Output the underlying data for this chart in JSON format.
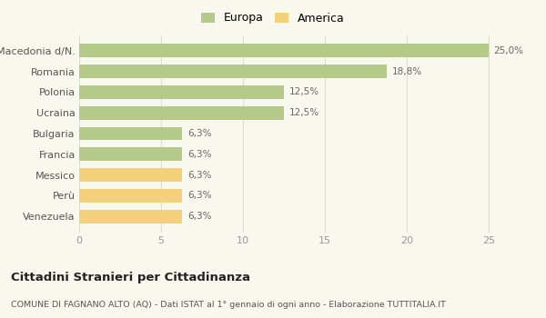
{
  "categories": [
    "Venezuela",
    "Perù",
    "Messico",
    "Francia",
    "Bulgaria",
    "Ucraina",
    "Polonia",
    "Romania",
    "Macedonia d/N."
  ],
  "values": [
    6.3,
    6.3,
    6.3,
    6.3,
    6.3,
    12.5,
    12.5,
    18.8,
    25.0
  ],
  "labels": [
    "6,3%",
    "6,3%",
    "6,3%",
    "6,3%",
    "6,3%",
    "12,5%",
    "12,5%",
    "18,8%",
    "25,0%"
  ],
  "colors": [
    "#f5d07a",
    "#f5d07a",
    "#f5d07a",
    "#b5c98a",
    "#b5c98a",
    "#b5c98a",
    "#b5c98a",
    "#b5c98a",
    "#b5c98a"
  ],
  "europa_color": "#b5c98a",
  "america_color": "#f5d07a",
  "legend_europa": "Europa",
  "legend_america": "America",
  "title": "Cittadini Stranieri per Cittadinanza",
  "subtitle": "COMUNE DI FAGNANO ALTO (AQ) - Dati ISTAT al 1° gennaio di ogni anno - Elaborazione TUTTITALIA.IT",
  "xlim": [
    0,
    26
  ],
  "xticks": [
    0,
    5,
    10,
    15,
    20,
    25
  ],
  "background_color": "#f8f8ef",
  "bar_height": 0.65,
  "grid_color": "#ddddcc"
}
